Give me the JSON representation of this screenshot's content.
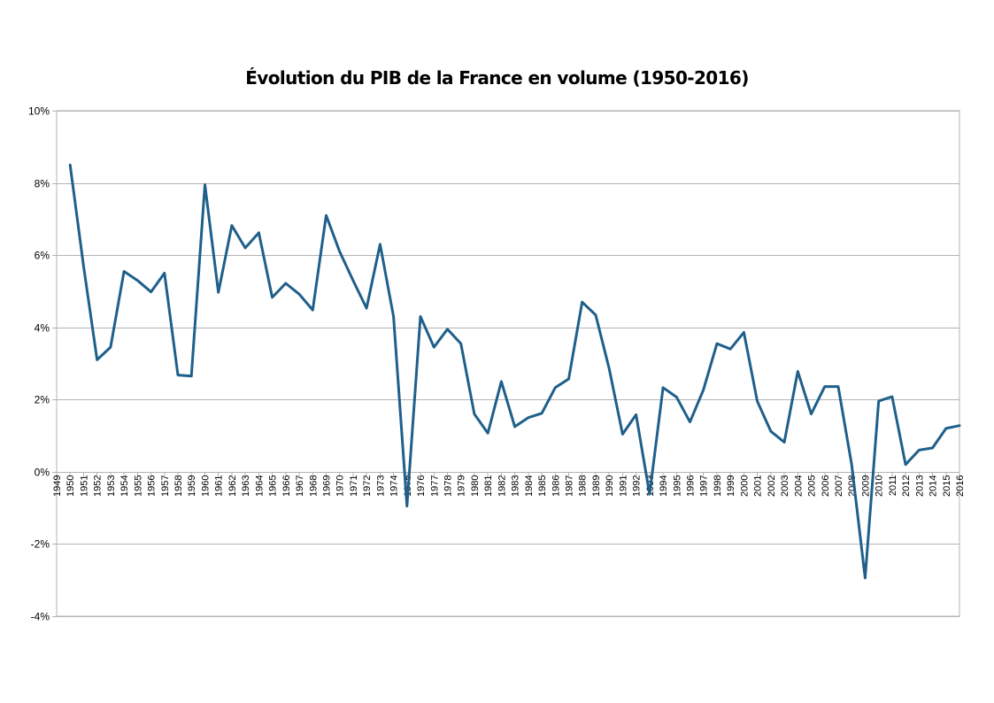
{
  "chart_data": {
    "type": "line",
    "title": "Évolution du PIB de la France en volume (1950-2016)",
    "xlabel": "",
    "ylabel": "",
    "ylim": [
      -4,
      10
    ],
    "yticks": [
      -4,
      -2,
      0,
      2,
      4,
      6,
      8,
      10
    ],
    "ytick_labels": [
      "-4%",
      "-2%",
      "0%",
      "2%",
      "4%",
      "6%",
      "8%",
      "10%"
    ],
    "grid": true,
    "legend": "none",
    "color": "#1f5f8b",
    "categories": [
      "1949",
      "1950",
      "1951",
      "1952",
      "1953",
      "1954",
      "1955",
      "1956",
      "1957",
      "1958",
      "1959",
      "1960",
      "1961",
      "1962",
      "1963",
      "1964",
      "1965",
      "1966",
      "1967",
      "1968",
      "1969",
      "1970",
      "1971",
      "1972",
      "1973",
      "1974",
      "1975",
      "1976",
      "1977",
      "1978",
      "1979",
      "1980",
      "1981",
      "1982",
      "1983",
      "1984",
      "1985",
      "1986",
      "1987",
      "1988",
      "1989",
      "1990",
      "1991",
      "1992",
      "1993",
      "1994",
      "1995",
      "1996",
      "1997",
      "1998",
      "1999",
      "2000",
      "2001",
      "2002",
      "2003",
      "2004",
      "2005",
      "2006",
      "2007",
      "2008",
      "2009",
      "2010",
      "2011",
      "2012",
      "2013",
      "2014",
      "2015",
      "2016"
    ],
    "series": [
      {
        "values": [
          null,
          8.5,
          5.7,
          3.1,
          3.45,
          5.55,
          5.3,
          4.98,
          5.5,
          2.68,
          2.65,
          7.95,
          4.97,
          6.82,
          6.2,
          6.62,
          4.83,
          5.22,
          4.92,
          4.48,
          7.1,
          6.1,
          5.3,
          4.53,
          6.3,
          4.3,
          -0.95,
          4.3,
          3.45,
          3.95,
          3.55,
          1.6,
          1.07,
          2.5,
          1.25,
          1.5,
          1.62,
          2.33,
          2.57,
          4.7,
          4.34,
          2.86,
          1.04,
          1.58,
          -0.62,
          2.33,
          2.07,
          1.38,
          2.27,
          3.55,
          3.4,
          3.86,
          1.95,
          1.12,
          0.82,
          2.78,
          1.6,
          2.36,
          2.36,
          0.2,
          -2.94,
          1.96,
          2.08,
          0.2,
          0.6,
          0.66,
          1.2,
          1.28
        ]
      }
    ]
  }
}
